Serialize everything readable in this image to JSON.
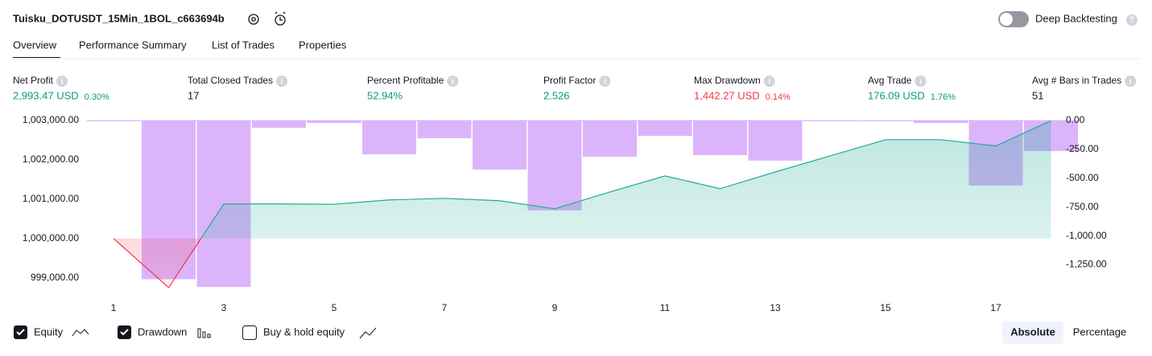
{
  "header": {
    "title": "Tuisku_DOTUSDT_15Min_1BOL_c663694b",
    "toggle_label": "Deep Backtesting"
  },
  "tabs": [
    "Overview",
    "Performance Summary",
    "List of Trades",
    "Properties"
  ],
  "metrics": [
    {
      "label": "Net Profit",
      "value": "2,993.47 USD",
      "pct": "0.30%",
      "tone": "green"
    },
    {
      "label": "Total Closed Trades",
      "value": "17",
      "tone": "plain"
    },
    {
      "label": "Percent Profitable",
      "value": "52.94%",
      "tone": "green"
    },
    {
      "label": "Profit Factor",
      "value": "2.526",
      "tone": "green"
    },
    {
      "label": "Max Drawdown",
      "value": "1,442.27 USD",
      "pct": "0.14%",
      "tone": "red"
    },
    {
      "label": "Avg Trade",
      "value": "176.09 USD",
      "pct": "1.76%",
      "tone": "green"
    },
    {
      "label": "Avg # Bars in Trades",
      "value": "51",
      "tone": "plain"
    }
  ],
  "chart_data": {
    "type": "line",
    "x": [
      1,
      2,
      3,
      4,
      5,
      6,
      7,
      8,
      9,
      10,
      11,
      12,
      13,
      14,
      15,
      16,
      17,
      18
    ],
    "xlim": [
      1,
      18
    ],
    "xticks": [
      1,
      3,
      5,
      7,
      9,
      11,
      13,
      15,
      17
    ],
    "ylim": [
      998600,
      1003200
    ],
    "yticks": [
      {
        "value": 999000,
        "label": "999,000.00"
      },
      {
        "value": 1000000,
        "label": "1,000,000.00"
      },
      {
        "value": 1001000,
        "label": "1,001,000.00"
      },
      {
        "value": 1002000,
        "label": "1,002,000.00"
      },
      {
        "value": 1003000,
        "label": "1,003,000.00"
      }
    ],
    "y2lim": [
      -1500,
      70
    ],
    "y2ticks": [
      {
        "value": 0,
        "label": "0.00"
      },
      {
        "value": -250,
        "label": "-250.00"
      },
      {
        "value": -500,
        "label": "-500.00"
      },
      {
        "value": -750,
        "label": "-750.00"
      },
      {
        "value": -1000,
        "label": "-1,000.00"
      },
      {
        "value": -1250,
        "label": "-1,250.00"
      }
    ],
    "series": [
      {
        "name": "Equity",
        "type": "line",
        "color": "#22ab94",
        "values": [
          1000000,
          998755,
          1000878,
          1000878,
          1000870,
          1000980,
          1001020,
          1000960,
          1000755,
          1001180,
          1001590,
          1001265,
          1001690,
          1002100,
          1002510,
          1002510,
          1002350,
          1002993
        ]
      },
      {
        "name": "Drawdown",
        "type": "bar",
        "axis": "y2",
        "color": "#dcb4fb",
        "values": [
          0,
          -1375,
          -1442,
          -62,
          -20,
          -292,
          -153,
          -424,
          -778,
          -313,
          -132,
          -299,
          -347,
          0,
          0,
          -21,
          -563,
          -264
        ]
      }
    ],
    "legend_extra": "Buy & hold equity"
  },
  "view_modes": [
    "Absolute",
    "Percentage"
  ]
}
